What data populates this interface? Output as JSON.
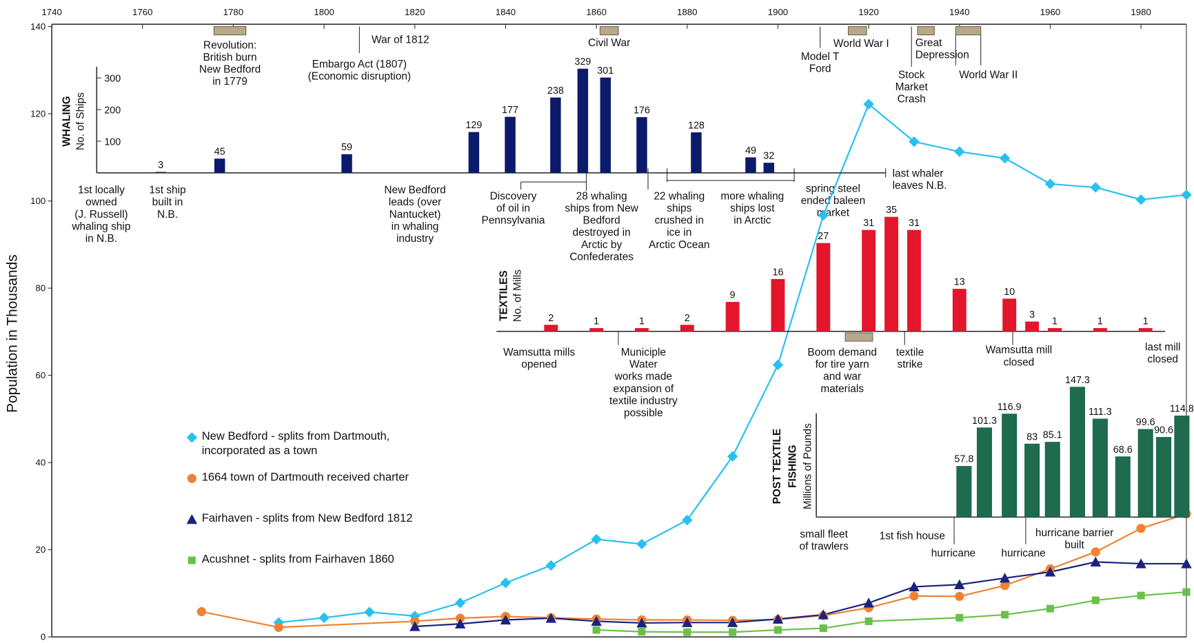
{
  "chart_data": [
    {
      "type": "line",
      "ylabel": "Population in Thousands",
      "xlim": [
        1740,
        1990
      ],
      "xticks": [
        1740,
        1760,
        1780,
        1800,
        1820,
        1840,
        1860,
        1880,
        1900,
        1920,
        1940,
        1960,
        1980
      ],
      "ylim": [
        0,
        140
      ],
      "yticks": [
        0,
        20,
        40,
        60,
        80,
        100,
        120,
        140
      ],
      "series": [
        {
          "name": "New Bedford - splits from Dartmouth, incorporated as a town",
          "color": "#29c0f0",
          "marker": "diamond",
          "x": [
            1790,
            1800,
            1810,
            1820,
            1830,
            1840,
            1850,
            1860,
            1870,
            1880,
            1890,
            1900,
            1910,
            1920,
            1930,
            1940,
            1950,
            1960,
            1970,
            1980,
            1990
          ],
          "values": [
            3.3,
            4.4,
            5.7,
            4.8,
            7.8,
            12.4,
            16.4,
            22.4,
            21.3,
            26.8,
            41.4,
            62.4,
            96.7,
            122.2,
            113.6,
            111.3,
            109.8,
            103.9,
            103.1,
            100.3,
            101.4
          ]
        },
        {
          "name": "1664 town of Dartmouth received charter",
          "color": "#f08232",
          "marker": "circle",
          "x": [
            1773,
            1790,
            1820,
            1830,
            1840,
            1850,
            1860,
            1870,
            1880,
            1890,
            1900,
            1910,
            1920,
            1930,
            1940,
            1950,
            1960,
            1970,
            1980,
            1990
          ],
          "values": [
            5.8,
            2.2,
            3.6,
            4.3,
            4.7,
            4.4,
            4.1,
            3.9,
            3.9,
            3.8,
            4.0,
            4.9,
            6.7,
            9.4,
            9.3,
            11.8,
            15.6,
            19.5,
            24.9,
            28.2
          ]
        },
        {
          "name": "Fairhaven - splits from New Bedford 1812",
          "color": "#1a237e",
          "marker": "triangle",
          "x": [
            1820,
            1830,
            1840,
            1850,
            1860,
            1870,
            1880,
            1890,
            1900,
            1910,
            1920,
            1930,
            1940,
            1950,
            1960,
            1970,
            1980,
            1990
          ],
          "values": [
            2.4,
            3.0,
            3.9,
            4.3,
            3.6,
            3.2,
            3.3,
            3.3,
            4.1,
            5.1,
            7.8,
            11.5,
            12.0,
            13.5,
            14.9,
            17.2,
            16.8,
            16.8
          ]
        },
        {
          "name": "Acushnet - splits from Fairhaven 1860",
          "color": "#6cc04a",
          "marker": "square",
          "x": [
            1860,
            1870,
            1880,
            1890,
            1900,
            1910,
            1920,
            1940,
            1950,
            1960,
            1970,
            1980,
            1990
          ],
          "values": [
            1.6,
            1.2,
            1.1,
            1.1,
            1.6,
            2.0,
            3.6,
            4.4,
            5.1,
            6.5,
            8.4,
            9.5,
            10.3
          ]
        }
      ],
      "annotations": [
        {
          "lines": [
            "Revolution:",
            "British burn",
            "New Bedford",
            "in 1779"
          ]
        },
        {
          "lines": [
            "War of 1812"
          ]
        },
        {
          "lines": [
            "Embargo Act (1807)",
            "(Economic disruption)"
          ]
        },
        {
          "lines": [
            "Civil War"
          ]
        },
        {
          "lines": [
            "World War I"
          ]
        },
        {
          "lines": [
            "Model T",
            "Ford"
          ]
        },
        {
          "lines": [
            "Great",
            "Depression"
          ]
        },
        {
          "lines": [
            "Stock",
            "Market",
            "Crash"
          ]
        },
        {
          "lines": [
            "World War II"
          ]
        }
      ]
    },
    {
      "type": "bar",
      "title": [
        "WHALING"
      ],
      "ylabel": "No. of Ships",
      "color": "#0b1a6b",
      "xlim": [
        1740,
        1990
      ],
      "ylim": [
        0,
        340
      ],
      "yticks": [
        100,
        200,
        300
      ],
      "x": [
        1764,
        1777,
        1805,
        1833,
        1841,
        1851,
        1857,
        1862,
        1870,
        1882,
        1894,
        1898
      ],
      "values": [
        3,
        45,
        59,
        129,
        177,
        238,
        329,
        301,
        176,
        128,
        49,
        32
      ],
      "annotations": [
        {
          "lines": [
            "1st locally",
            "owned",
            "(J. Russell)",
            "whaling ship",
            "in N.B."
          ]
        },
        {
          "lines": [
            "1st ship",
            "built in",
            "N.B."
          ]
        },
        {
          "lines": [
            "New Bedford",
            "leads (over",
            "Nantucket)",
            "in whaling",
            "industry"
          ]
        },
        {
          "lines": [
            "Discovery",
            "of oil in",
            "Pennsylvania"
          ]
        },
        {
          "lines": [
            "28 whaling",
            "ships from New",
            "Bedford",
            "destroyed in",
            "Arctic by",
            "Confederates"
          ]
        },
        {
          "lines": [
            "22 whaling",
            "ships",
            "crushed in",
            "ice in",
            "Arctic Ocean"
          ]
        },
        {
          "lines": [
            "more whaling",
            "ships lost",
            "in Arctic"
          ]
        },
        {
          "lines": [
            "spring steel",
            "ended baleen",
            "market"
          ]
        },
        {
          "lines": [
            "last whaler",
            "leaves N.B."
          ]
        }
      ]
    },
    {
      "type": "bar",
      "title": [
        "TEXTILES"
      ],
      "ylabel": "No. of Mills",
      "color": "#e3162b",
      "xlim": [
        1740,
        1990
      ],
      "ylim": [
        0,
        35
      ],
      "x": [
        1850,
        1860,
        1870,
        1880,
        1890,
        1900,
        1910,
        1920,
        1925,
        1930,
        1940,
        1951,
        1956,
        1961,
        1971,
        1981
      ],
      "values": [
        2,
        1,
        1,
        2,
        9,
        16,
        27,
        31,
        35,
        31,
        13,
        10,
        3,
        1,
        1,
        1
      ],
      "annotations": [
        {
          "lines": [
            "Wamsutta mills",
            "opened"
          ]
        },
        {
          "lines": [
            "Municiple",
            "Water",
            "works made",
            "expansion of",
            "textile industry",
            "possible"
          ]
        },
        {
          "lines": [
            "Boom demand",
            "for tire yarn",
            "and war",
            "materials"
          ]
        },
        {
          "lines": [
            "textile",
            "strike"
          ]
        },
        {
          "lines": [
            "Wamsutta mill",
            "closed"
          ]
        },
        {
          "lines": [
            "last mill",
            "closed"
          ]
        }
      ]
    },
    {
      "type": "bar",
      "title": [
        "POST TEXTILE",
        "FISHING"
      ],
      "ylabel": "Millions of Pounds",
      "color": "#1e6b4e",
      "xlim": [
        1740,
        1990
      ],
      "ylim": [
        0,
        150
      ],
      "x": [
        1941,
        1945.5,
        1951,
        1956,
        1960.5,
        1966,
        1971,
        1976,
        1981,
        1985,
        1989
      ],
      "values": [
        57.8,
        101.3,
        116.9,
        83,
        85.1,
        147.3,
        111.3,
        68.6,
        99.6,
        90.6,
        114.8
      ],
      "annotations": [
        {
          "lines": [
            "small fleet",
            "of trawlers"
          ]
        },
        {
          "lines": [
            "1st fish house"
          ]
        },
        {
          "lines": [
            "hurricane"
          ]
        },
        {
          "lines": [
            "hurricane"
          ]
        },
        {
          "lines": [
            "hurricane barrier",
            "built"
          ]
        }
      ]
    }
  ]
}
